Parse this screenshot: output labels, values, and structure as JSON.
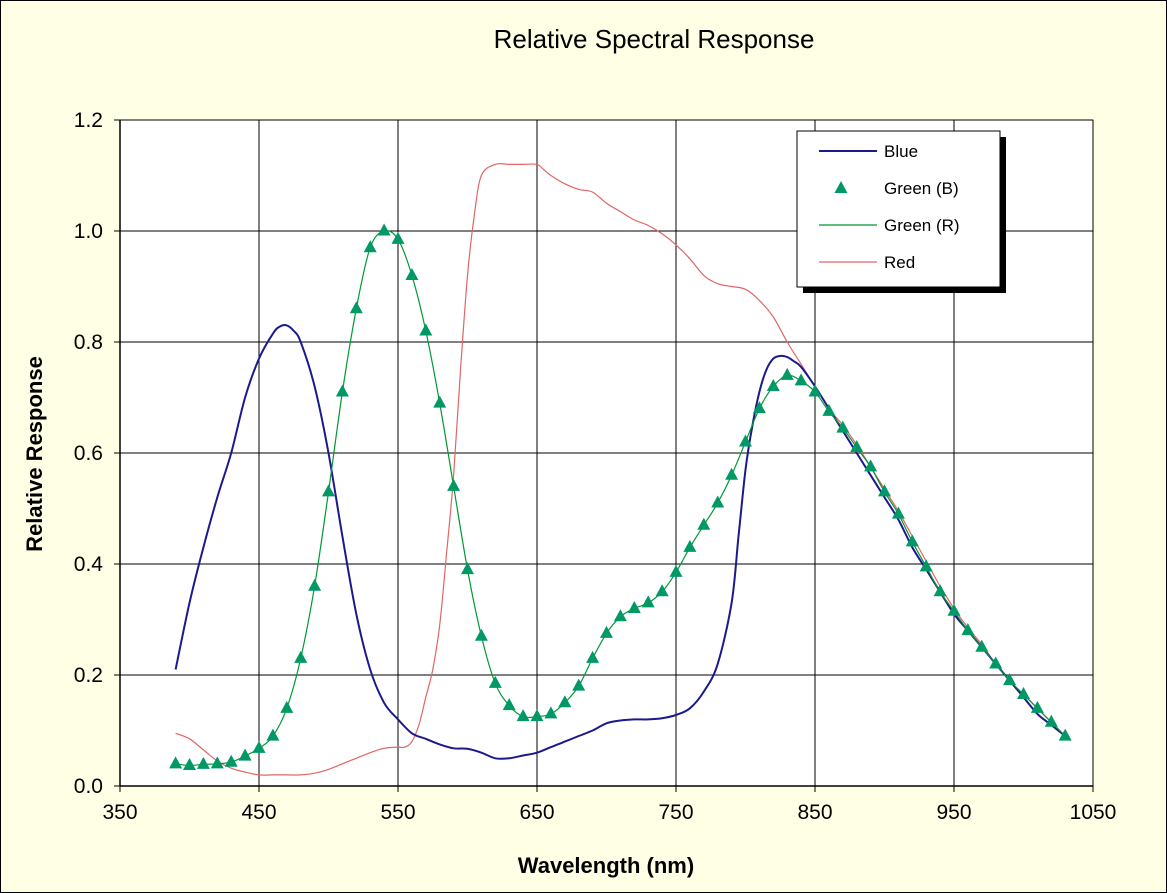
{
  "chart_data": {
    "type": "line",
    "title": "Relative Spectral Response",
    "xlabel": "Wavelength (nm)",
    "ylabel": "Relative Response",
    "xlim": [
      350,
      1050
    ],
    "ylim": [
      0.0,
      1.2
    ],
    "x_ticks": [
      "350",
      "450",
      "550",
      "650",
      "750",
      "850",
      "950",
      "1050"
    ],
    "y_ticks": [
      "0.0",
      "0.2",
      "0.4",
      "0.6",
      "0.8",
      "1.0",
      "1.2"
    ],
    "grid": true,
    "legend_position": "top-right",
    "colors": {
      "background": "#ffffe5",
      "plot_area": "#ffffff",
      "grid": "#000000",
      "blue": "#1a1a8c",
      "green": "#009933",
      "green_marker": "#009966",
      "red": "#e06666"
    },
    "series": [
      {
        "name": "Blue",
        "style": "line",
        "x": [
          390,
          400,
          410,
          420,
          430,
          440,
          450,
          460,
          465,
          470,
          475,
          480,
          490,
          500,
          510,
          520,
          530,
          540,
          550,
          560,
          570,
          580,
          590,
          600,
          610,
          620,
          630,
          640,
          650,
          660,
          670,
          680,
          690,
          700,
          710,
          720,
          730,
          740,
          750,
          760,
          770,
          780,
          790,
          795,
          800,
          805,
          810,
          815,
          820,
          825,
          830,
          835,
          840,
          850,
          860,
          870,
          880,
          890,
          900,
          910,
          920,
          930,
          940,
          950,
          960,
          970,
          980,
          990,
          1000,
          1010,
          1020,
          1030
        ],
        "values": [
          0.21,
          0.33,
          0.43,
          0.52,
          0.6,
          0.7,
          0.77,
          0.815,
          0.828,
          0.83,
          0.82,
          0.8,
          0.72,
          0.6,
          0.45,
          0.31,
          0.21,
          0.15,
          0.12,
          0.095,
          0.085,
          0.075,
          0.068,
          0.067,
          0.06,
          0.05,
          0.05,
          0.055,
          0.06,
          0.07,
          0.08,
          0.09,
          0.1,
          0.113,
          0.118,
          0.12,
          0.12,
          0.122,
          0.128,
          0.14,
          0.17,
          0.22,
          0.33,
          0.45,
          0.57,
          0.65,
          0.71,
          0.75,
          0.77,
          0.775,
          0.773,
          0.765,
          0.755,
          0.72,
          0.68,
          0.64,
          0.6,
          0.56,
          0.52,
          0.48,
          0.43,
          0.39,
          0.35,
          0.31,
          0.28,
          0.25,
          0.22,
          0.19,
          0.16,
          0.13,
          0.11,
          0.09
        ]
      },
      {
        "name": "Green (B)",
        "style": "markers",
        "x": [
          390,
          400,
          410,
          420,
          430,
          440,
          450,
          460,
          470,
          480,
          490,
          500,
          510,
          520,
          530,
          540,
          550,
          560,
          570,
          580,
          590,
          600,
          610,
          620,
          630,
          640,
          650,
          660,
          670,
          680,
          690,
          700,
          710,
          720,
          730,
          740,
          750,
          760,
          770,
          780,
          790,
          800,
          810,
          820,
          830,
          840,
          850,
          860,
          870,
          880,
          890,
          900,
          910,
          920,
          930,
          940,
          950,
          960,
          970,
          980,
          990,
          1000,
          1010,
          1020,
          1030
        ],
        "values": [
          0.04,
          0.037,
          0.039,
          0.04,
          0.043,
          0.054,
          0.068,
          0.09,
          0.14,
          0.23,
          0.36,
          0.53,
          0.71,
          0.86,
          0.97,
          1.0,
          0.985,
          0.92,
          0.82,
          0.69,
          0.54,
          0.39,
          0.27,
          0.185,
          0.145,
          0.125,
          0.125,
          0.13,
          0.15,
          0.18,
          0.23,
          0.275,
          0.305,
          0.32,
          0.33,
          0.35,
          0.385,
          0.43,
          0.47,
          0.51,
          0.56,
          0.62,
          0.68,
          0.72,
          0.74,
          0.73,
          0.71,
          0.675,
          0.645,
          0.61,
          0.575,
          0.53,
          0.49,
          0.44,
          0.395,
          0.35,
          0.315,
          0.28,
          0.25,
          0.22,
          0.19,
          0.165,
          0.14,
          0.115,
          0.09
        ]
      },
      {
        "name": "Green (R)",
        "style": "line",
        "x": [
          390,
          400,
          410,
          420,
          430,
          440,
          450,
          460,
          470,
          480,
          490,
          500,
          510,
          520,
          530,
          540,
          550,
          560,
          570,
          580,
          590,
          600,
          610,
          620,
          630,
          640,
          650,
          660,
          670,
          680,
          690,
          700,
          710,
          720,
          730,
          740,
          750,
          760,
          770,
          780,
          790,
          800,
          810,
          820,
          830,
          840,
          850,
          860,
          870,
          880,
          890,
          900,
          910,
          920,
          930,
          940,
          950,
          960,
          970,
          980,
          990,
          1000,
          1010,
          1020,
          1030
        ],
        "values": [
          0.04,
          0.037,
          0.039,
          0.04,
          0.043,
          0.054,
          0.068,
          0.09,
          0.14,
          0.23,
          0.36,
          0.53,
          0.71,
          0.86,
          0.97,
          1.0,
          0.985,
          0.92,
          0.82,
          0.69,
          0.54,
          0.39,
          0.27,
          0.185,
          0.145,
          0.125,
          0.125,
          0.13,
          0.15,
          0.18,
          0.23,
          0.275,
          0.305,
          0.32,
          0.33,
          0.35,
          0.385,
          0.43,
          0.47,
          0.51,
          0.56,
          0.62,
          0.68,
          0.72,
          0.74,
          0.73,
          0.71,
          0.675,
          0.645,
          0.61,
          0.575,
          0.53,
          0.49,
          0.44,
          0.395,
          0.35,
          0.315,
          0.28,
          0.25,
          0.22,
          0.19,
          0.165,
          0.14,
          0.115,
          0.09
        ]
      },
      {
        "name": "Red",
        "style": "line",
        "x": [
          390,
          400,
          410,
          420,
          430,
          440,
          450,
          460,
          470,
          480,
          490,
          500,
          510,
          520,
          530,
          540,
          550,
          555,
          560,
          565,
          570,
          575,
          580,
          585,
          590,
          595,
          600,
          605,
          610,
          620,
          630,
          640,
          650,
          655,
          660,
          670,
          680,
          690,
          700,
          710,
          720,
          730,
          740,
          750,
          760,
          770,
          780,
          790,
          800,
          810,
          820,
          830,
          840,
          850,
          860,
          870,
          880,
          890,
          900,
          910,
          920,
          930,
          940,
          950,
          960,
          970,
          980,
          990,
          1000,
          1010,
          1020,
          1030
        ],
        "values": [
          0.095,
          0.085,
          0.065,
          0.045,
          0.032,
          0.025,
          0.02,
          0.02,
          0.02,
          0.02,
          0.023,
          0.03,
          0.04,
          0.05,
          0.06,
          0.068,
          0.07,
          0.07,
          0.08,
          0.11,
          0.16,
          0.21,
          0.29,
          0.42,
          0.56,
          0.75,
          0.92,
          1.03,
          1.1,
          1.12,
          1.12,
          1.12,
          1.12,
          1.11,
          1.1,
          1.085,
          1.075,
          1.07,
          1.05,
          1.035,
          1.02,
          1.01,
          0.995,
          0.975,
          0.95,
          0.92,
          0.905,
          0.9,
          0.895,
          0.875,
          0.845,
          0.8,
          0.76,
          0.72,
          0.68,
          0.65,
          0.615,
          0.575,
          0.535,
          0.495,
          0.45,
          0.405,
          0.36,
          0.32,
          0.285,
          0.255,
          0.22,
          0.19,
          0.165,
          0.14,
          0.115,
          0.09
        ]
      }
    ]
  }
}
